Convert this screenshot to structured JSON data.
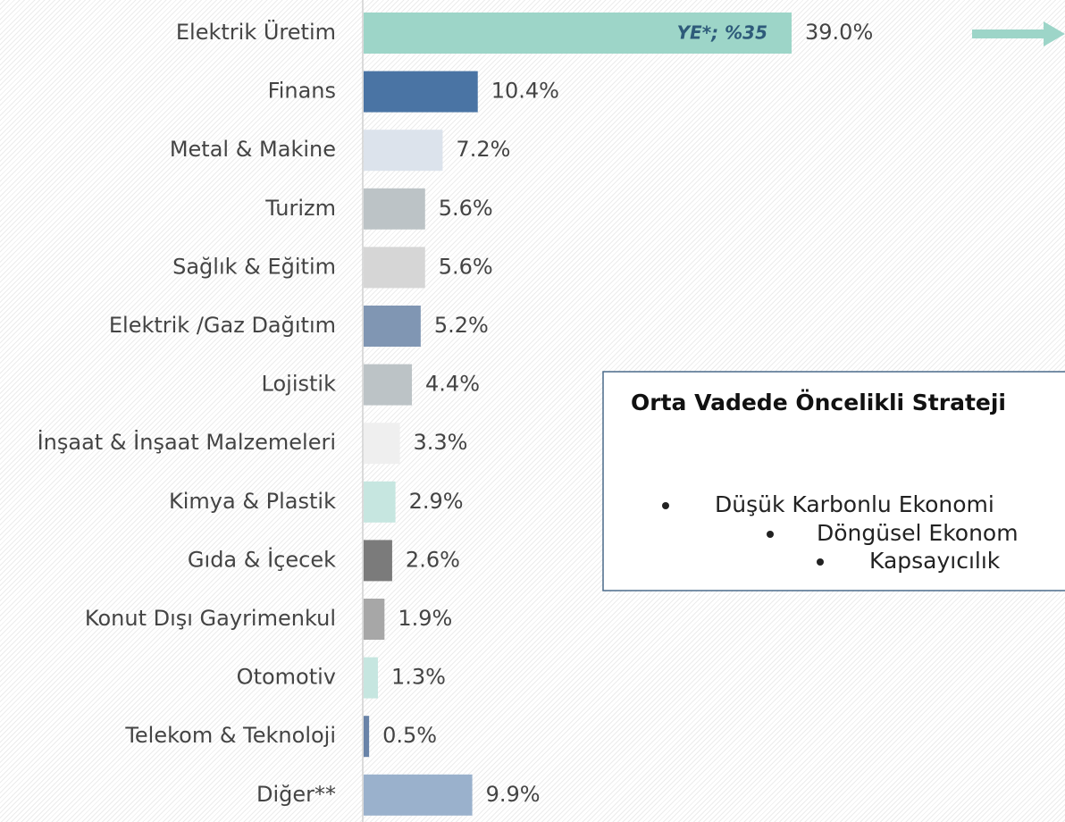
{
  "chart_data": {
    "type": "hbar",
    "categories": [
      "Elektrik Üretim",
      "Finans",
      "Metal & Makine",
      "Turizm",
      "Sağlık & Eğitim",
      "Elektrik /Gaz Dağıtım",
      "Lojistik",
      "İnşaat & İnşaat Malzemeleri",
      "Kimya & Plastik",
      "Gıda & İçecek",
      "Konut Dışı Gayrimenkul",
      "Otomotiv",
      "Telekom & Teknoloji",
      "Diğer**"
    ],
    "values": [
      39.0,
      10.4,
      7.2,
      5.6,
      5.6,
      5.2,
      4.4,
      3.3,
      2.9,
      2.6,
      1.9,
      1.3,
      0.5,
      9.9
    ],
    "value_labels": [
      "39.0%",
      "10.4%",
      "7.2%",
      "5.6%",
      "5.6%",
      "5.2%",
      "4.4%",
      "3.3%",
      "2.9%",
      "2.6%",
      "1.9%",
      "1.3%",
      "0.5%",
      "9.9%"
    ],
    "colors": [
      "#9dd5c8",
      "#4a74a4",
      "#dce3ec",
      "#bcc3c6",
      "#d6d6d6",
      "#8096b3",
      "#bcc3c6",
      "#efefef",
      "#c6e6e0",
      "#7b7b7b",
      "#a7a7a7",
      "#c6e6e0",
      "#6983a8",
      "#9ab1cc"
    ],
    "bar_annotation": "YE*; %35",
    "text_box": {
      "title": "Orta Vadede Öncelikli Strateji",
      "bullets": [
        "Düşük Karbonlu Ekonomi",
        "Döngüsel Ekonom",
        "Kapsayıcılık"
      ]
    }
  }
}
